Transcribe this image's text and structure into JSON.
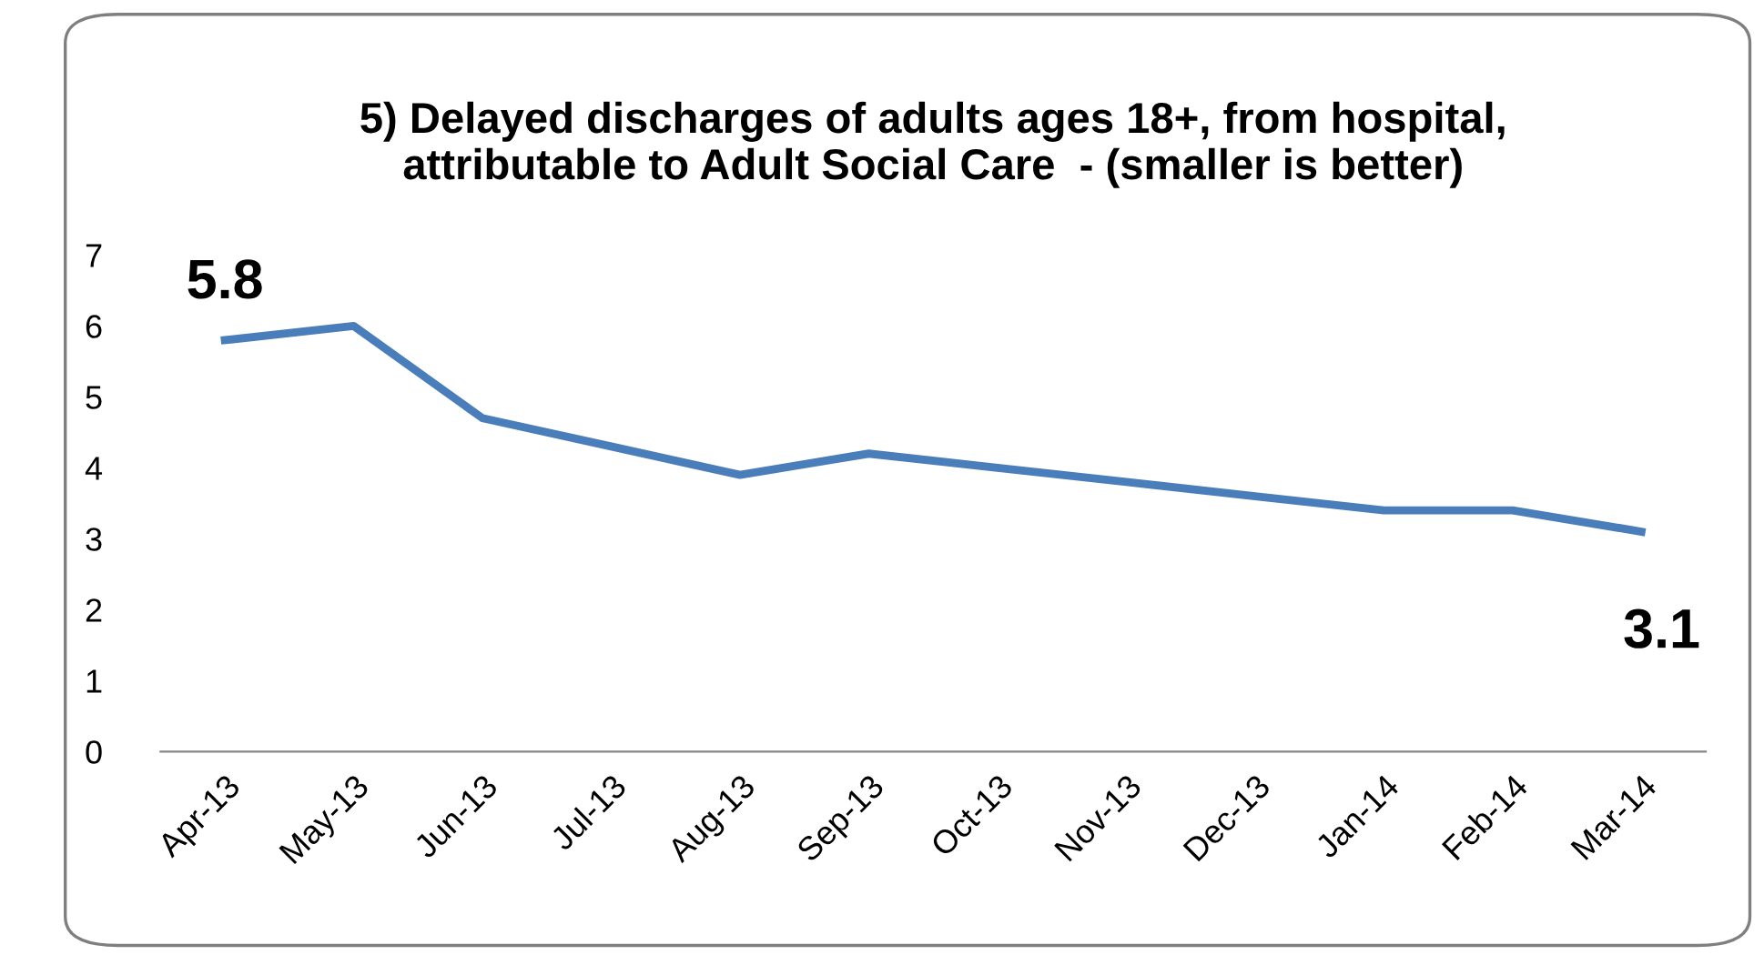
{
  "chart_data": {
    "type": "line",
    "title": "5) Delayed discharges of adults ages 18+, from hospital,\nattributable to Adult Social Care  - (smaller is better)",
    "categories": [
      "Apr-13",
      "May-13",
      "Jun-13",
      "Jul-13",
      "Aug-13",
      "Sep-13",
      "Oct-13",
      "Nov-13",
      "Dec-13",
      "Jan-14",
      "Feb-14",
      "Mar-14"
    ],
    "series": [
      {
        "color": "#4a7ebb",
        "values": [
          5.8,
          6.0,
          4.7,
          4.3,
          3.9,
          4.2,
          4.0,
          3.8,
          3.6,
          3.4,
          3.4,
          3.1
        ],
        "value_labels": [
          "5.8",
          null,
          null,
          null,
          null,
          null,
          null,
          null,
          null,
          null,
          null,
          "3.1"
        ]
      }
    ],
    "ylim": [
      0,
      7
    ],
    "yticks": [
      0,
      1,
      2,
      3,
      4,
      5,
      6,
      7
    ],
    "grid": false,
    "legend": false,
    "marker": "none",
    "line_style": "solid"
  }
}
